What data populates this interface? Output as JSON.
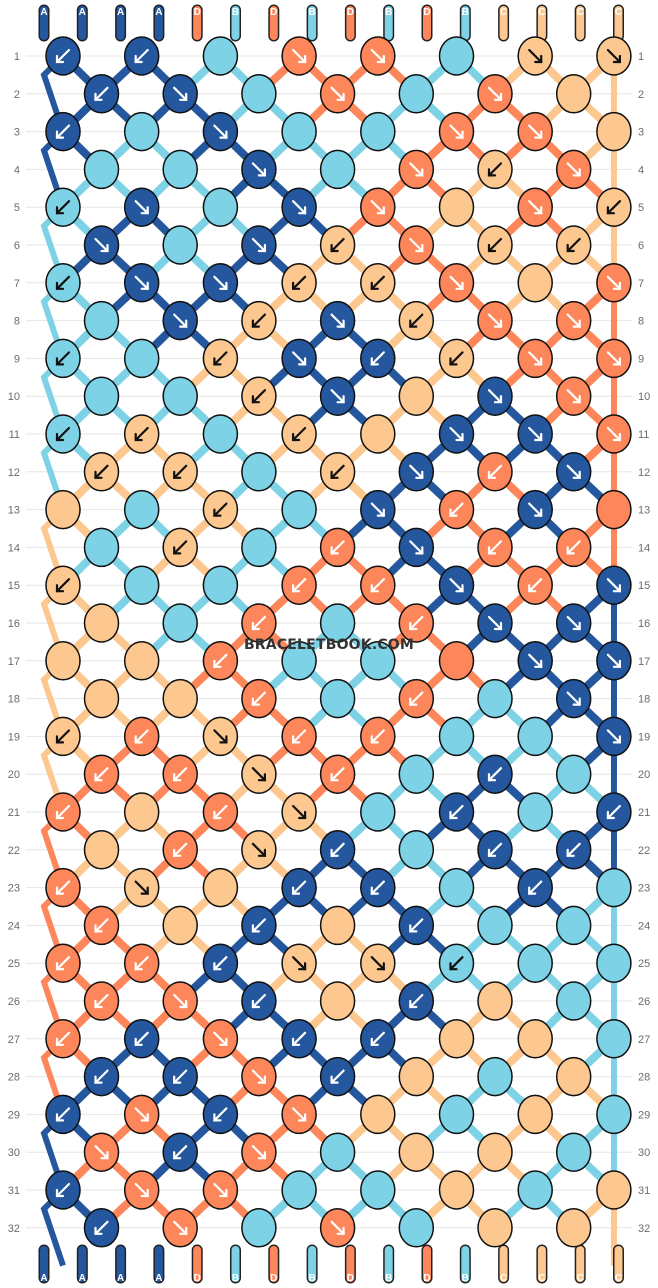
{
  "colors": {
    "A": "#24579e",
    "B": "#7dd2e6",
    "C": "#fcc88f",
    "D": "#fd875a",
    "outline": "#111111",
    "grid": "#e6e6e6",
    "background": "#ffffff"
  },
  "strings_top": [
    "A",
    "A",
    "A",
    "A",
    "D",
    "B",
    "D",
    "B",
    "D",
    "B",
    "D",
    "B",
    "C",
    "C",
    "C",
    "C"
  ],
  "strings_bottom": [
    "A",
    "A",
    "A",
    "A",
    "D",
    "B",
    "D",
    "B",
    "D",
    "B",
    "D",
    "B",
    "C",
    "C",
    "C",
    "C"
  ],
  "rows_count": 32,
  "watermark": "BRACELETBOOK.COM",
  "rows": [
    {
      "n": "1",
      "knots": [
        [
          "A",
          "bl"
        ],
        [
          "A",
          "bl"
        ],
        [
          "B",
          ""
        ],
        [
          "D",
          "br"
        ],
        [
          "D",
          "br"
        ],
        [
          "B",
          ""
        ],
        [
          "C",
          "br"
        ],
        [
          "C",
          "br"
        ]
      ]
    },
    {
      "n": "2",
      "knots": [
        [
          "A",
          "bl"
        ],
        [
          "A",
          "br"
        ],
        [
          "B",
          ""
        ],
        [
          "D",
          "br"
        ],
        [
          "B",
          ""
        ],
        [
          "D",
          "br"
        ],
        [
          "C",
          ""
        ]
      ]
    },
    {
      "n": "3",
      "knots": [
        [
          "A",
          "bl"
        ],
        [
          "B",
          ""
        ],
        [
          "A",
          "br"
        ],
        [
          "B",
          ""
        ],
        [
          "B",
          ""
        ],
        [
          "D",
          "br"
        ],
        [
          "D",
          "br"
        ],
        [
          "C",
          ""
        ]
      ]
    },
    {
      "n": "4",
      "knots": [
        [
          "B",
          ""
        ],
        [
          "B",
          ""
        ],
        [
          "A",
          "br"
        ],
        [
          "B",
          ""
        ],
        [
          "D",
          "br"
        ],
        [
          "C",
          "bl"
        ],
        [
          "D",
          "br"
        ]
      ]
    },
    {
      "n": "5",
      "knots": [
        [
          "B",
          "bl"
        ],
        [
          "A",
          "br"
        ],
        [
          "B",
          ""
        ],
        [
          "A",
          "br"
        ],
        [
          "D",
          "br"
        ],
        [
          "C",
          ""
        ],
        [
          "D",
          "br"
        ],
        [
          "C",
          "bl"
        ]
      ]
    },
    {
      "n": "6",
      "knots": [
        [
          "A",
          "br"
        ],
        [
          "B",
          ""
        ],
        [
          "A",
          "br"
        ],
        [
          "C",
          "bl"
        ],
        [
          "D",
          "br"
        ],
        [
          "C",
          "bl"
        ],
        [
          "C",
          "bl"
        ]
      ]
    },
    {
      "n": "7",
      "knots": [
        [
          "B",
          "bl"
        ],
        [
          "A",
          "br"
        ],
        [
          "A",
          "br"
        ],
        [
          "C",
          "bl"
        ],
        [
          "C",
          "bl"
        ],
        [
          "D",
          "br"
        ],
        [
          "C",
          ""
        ],
        [
          "D",
          "br"
        ]
      ]
    },
    {
      "n": "8",
      "knots": [
        [
          "B",
          ""
        ],
        [
          "A",
          "br"
        ],
        [
          "C",
          "bl"
        ],
        [
          "A",
          "br"
        ],
        [
          "C",
          "bl"
        ],
        [
          "D",
          "br"
        ],
        [
          "D",
          "br"
        ]
      ]
    },
    {
      "n": "9",
      "knots": [
        [
          "B",
          "bl"
        ],
        [
          "B",
          ""
        ],
        [
          "C",
          "bl"
        ],
        [
          "A",
          "br"
        ],
        [
          "A",
          "bl"
        ],
        [
          "C",
          "bl"
        ],
        [
          "D",
          "br"
        ],
        [
          "D",
          "br"
        ]
      ]
    },
    {
      "n": "10",
      "knots": [
        [
          "B",
          ""
        ],
        [
          "B",
          ""
        ],
        [
          "C",
          "bl"
        ],
        [
          "A",
          "br"
        ],
        [
          "C",
          ""
        ],
        [
          "A",
          "br"
        ],
        [
          "D",
          "br"
        ]
      ]
    },
    {
      "n": "11",
      "knots": [
        [
          "B",
          "bl"
        ],
        [
          "C",
          "bl"
        ],
        [
          "B",
          ""
        ],
        [
          "C",
          "bl"
        ],
        [
          "C",
          ""
        ],
        [
          "A",
          "br"
        ],
        [
          "A",
          "br"
        ],
        [
          "D",
          "br"
        ]
      ]
    },
    {
      "n": "12",
      "knots": [
        [
          "C",
          "bl"
        ],
        [
          "C",
          "bl"
        ],
        [
          "B",
          ""
        ],
        [
          "C",
          "bl"
        ],
        [
          "A",
          "br"
        ],
        [
          "D",
          "bl"
        ],
        [
          "A",
          "br"
        ]
      ]
    },
    {
      "n": "13",
      "knots": [
        [
          "C",
          ""
        ],
        [
          "B",
          ""
        ],
        [
          "C",
          "bl"
        ],
        [
          "B",
          ""
        ],
        [
          "A",
          "br"
        ],
        [
          "D",
          "bl"
        ],
        [
          "A",
          "br"
        ],
        [
          "D",
          ""
        ]
      ]
    },
    {
      "n": "14",
      "knots": [
        [
          "B",
          ""
        ],
        [
          "C",
          "bl"
        ],
        [
          "B",
          ""
        ],
        [
          "D",
          "bl"
        ],
        [
          "A",
          "br"
        ],
        [
          "D",
          "bl"
        ],
        [
          "D",
          "bl"
        ]
      ]
    },
    {
      "n": "15",
      "knots": [
        [
          "C",
          "bl"
        ],
        [
          "B",
          ""
        ],
        [
          "B",
          ""
        ],
        [
          "D",
          "bl"
        ],
        [
          "D",
          "bl"
        ],
        [
          "A",
          "br"
        ],
        [
          "D",
          "bl"
        ],
        [
          "A",
          "br"
        ]
      ]
    },
    {
      "n": "16",
      "knots": [
        [
          "C",
          ""
        ],
        [
          "B",
          ""
        ],
        [
          "D",
          "bl"
        ],
        [
          "B",
          ""
        ],
        [
          "D",
          "bl"
        ],
        [
          "A",
          "br"
        ],
        [
          "A",
          "br"
        ]
      ]
    },
    {
      "n": "17",
      "knots": [
        [
          "C",
          ""
        ],
        [
          "C",
          ""
        ],
        [
          "D",
          "bl"
        ],
        [
          "B",
          ""
        ],
        [
          "B",
          ""
        ],
        [
          "D",
          ""
        ],
        [
          "A",
          "br"
        ],
        [
          "A",
          "br"
        ]
      ]
    },
    {
      "n": "18",
      "knots": [
        [
          "C",
          ""
        ],
        [
          "C",
          ""
        ],
        [
          "D",
          "bl"
        ],
        [
          "B",
          ""
        ],
        [
          "D",
          "bl"
        ],
        [
          "B",
          ""
        ],
        [
          "A",
          "br"
        ]
      ]
    },
    {
      "n": "19",
      "knots": [
        [
          "C",
          "bl"
        ],
        [
          "D",
          "bl"
        ],
        [
          "C",
          "br"
        ],
        [
          "D",
          "bl"
        ],
        [
          "D",
          "bl"
        ],
        [
          "B",
          ""
        ],
        [
          "B",
          ""
        ],
        [
          "A",
          "br"
        ]
      ]
    },
    {
      "n": "20",
      "knots": [
        [
          "D",
          "bl"
        ],
        [
          "D",
          "bl"
        ],
        [
          "C",
          "br"
        ],
        [
          "D",
          "bl"
        ],
        [
          "B",
          ""
        ],
        [
          "A",
          "bl"
        ],
        [
          "B",
          ""
        ]
      ]
    },
    {
      "n": "21",
      "knots": [
        [
          "D",
          "bl"
        ],
        [
          "C",
          ""
        ],
        [
          "D",
          "bl"
        ],
        [
          "C",
          "br"
        ],
        [
          "B",
          ""
        ],
        [
          "A",
          "bl"
        ],
        [
          "B",
          ""
        ],
        [
          "A",
          "bl"
        ]
      ]
    },
    {
      "n": "22",
      "knots": [
        [
          "C",
          ""
        ],
        [
          "D",
          "bl"
        ],
        [
          "C",
          "br"
        ],
        [
          "A",
          "bl"
        ],
        [
          "B",
          ""
        ],
        [
          "A",
          "bl"
        ],
        [
          "A",
          "bl"
        ]
      ]
    },
    {
      "n": "23",
      "knots": [
        [
          "D",
          "bl"
        ],
        [
          "C",
          "br"
        ],
        [
          "C",
          ""
        ],
        [
          "A",
          "bl"
        ],
        [
          "A",
          "bl"
        ],
        [
          "B",
          ""
        ],
        [
          "A",
          "bl"
        ],
        [
          "B",
          ""
        ]
      ]
    },
    {
      "n": "24",
      "knots": [
        [
          "D",
          "bl"
        ],
        [
          "C",
          ""
        ],
        [
          "A",
          "bl"
        ],
        [
          "C",
          ""
        ],
        [
          "A",
          "bl"
        ],
        [
          "B",
          ""
        ],
        [
          "B",
          ""
        ]
      ]
    },
    {
      "n": "25",
      "knots": [
        [
          "D",
          "bl"
        ],
        [
          "D",
          "bl"
        ],
        [
          "A",
          "bl"
        ],
        [
          "C",
          "br"
        ],
        [
          "C",
          "br"
        ],
        [
          "B",
          "bl"
        ],
        [
          "B",
          ""
        ],
        [
          "B",
          ""
        ]
      ]
    },
    {
      "n": "26",
      "knots": [
        [
          "D",
          "bl"
        ],
        [
          "D",
          "br"
        ],
        [
          "A",
          "bl"
        ],
        [
          "C",
          ""
        ],
        [
          "A",
          "bl"
        ],
        [
          "C",
          ""
        ],
        [
          "B",
          ""
        ]
      ]
    },
    {
      "n": "27",
      "knots": [
        [
          "D",
          "bl"
        ],
        [
          "A",
          "bl"
        ],
        [
          "D",
          "br"
        ],
        [
          "A",
          "bl"
        ],
        [
          "A",
          "bl"
        ],
        [
          "C",
          ""
        ],
        [
          "C",
          ""
        ],
        [
          "B",
          ""
        ]
      ]
    },
    {
      "n": "28",
      "knots": [
        [
          "A",
          "bl"
        ],
        [
          "A",
          "bl"
        ],
        [
          "D",
          "br"
        ],
        [
          "A",
          "bl"
        ],
        [
          "C",
          ""
        ],
        [
          "B",
          ""
        ],
        [
          "C",
          ""
        ]
      ]
    },
    {
      "n": "29",
      "knots": [
        [
          "A",
          "bl"
        ],
        [
          "D",
          "br"
        ],
        [
          "A",
          "bl"
        ],
        [
          "D",
          "br"
        ],
        [
          "C",
          ""
        ],
        [
          "B",
          ""
        ],
        [
          "C",
          ""
        ],
        [
          "B",
          ""
        ]
      ]
    },
    {
      "n": "30",
      "knots": [
        [
          "D",
          "br"
        ],
        [
          "A",
          "bl"
        ],
        [
          "D",
          "br"
        ],
        [
          "B",
          ""
        ],
        [
          "C",
          ""
        ],
        [
          "C",
          ""
        ],
        [
          "B",
          ""
        ]
      ]
    },
    {
      "n": "31",
      "knots": [
        [
          "A",
          "bl"
        ],
        [
          "D",
          "br"
        ],
        [
          "D",
          "br"
        ],
        [
          "B",
          ""
        ],
        [
          "B",
          ""
        ],
        [
          "C",
          ""
        ],
        [
          "B",
          ""
        ],
        [
          "C",
          ""
        ]
      ]
    },
    {
      "n": "32",
      "knots": [
        [
          "A",
          "bl"
        ],
        [
          "D",
          "br"
        ],
        [
          "B",
          ""
        ],
        [
          "D",
          "br"
        ],
        [
          "B",
          ""
        ],
        [
          "C",
          ""
        ],
        [
          "C",
          ""
        ]
      ]
    }
  ]
}
